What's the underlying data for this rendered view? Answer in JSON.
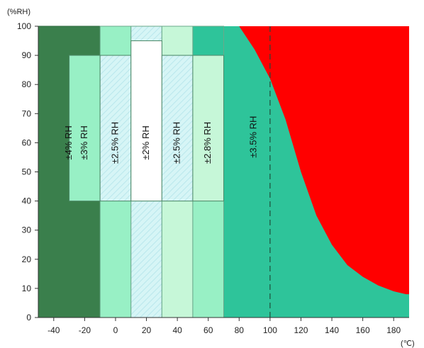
{
  "chart_data": {
    "type": "area",
    "ylabel": "(%RH)",
    "xlabel": "(℃)",
    "xlim": [
      -50,
      190
    ],
    "ylim": [
      0,
      100
    ],
    "x_ticks": [
      -40,
      -20,
      0,
      20,
      40,
      60,
      80,
      100,
      120,
      140,
      160,
      180
    ],
    "y_ticks": [
      0,
      10,
      20,
      30,
      40,
      50,
      60,
      70,
      80,
      90,
      100
    ],
    "grid": false,
    "reference_line": {
      "x": 100,
      "style": "dashed"
    },
    "background_zone": {
      "color": "#2ec49a",
      "x": [
        -50,
        190
      ],
      "y": [
        0,
        100
      ]
    },
    "zones": [
      {
        "label": "±4% RH",
        "x": [
          -50,
          -10
        ],
        "y": [
          0,
          100
        ],
        "color": "#3a7f4c",
        "pattern": "solid"
      },
      {
        "label": "±3% RH",
        "x": [
          -30,
          -10
        ],
        "y": [
          40,
          90
        ],
        "color": "#98f0c5",
        "pattern": "solid"
      },
      {
        "label": "±2.5% RH",
        "x": [
          -10,
          10
        ],
        "y": [
          40,
          90
        ],
        "color": "#d6f5f6",
        "pattern": "hatch"
      },
      {
        "label": "±2% RH",
        "x": [
          10,
          30
        ],
        "y": [
          40,
          95
        ],
        "color": "#ffffff",
        "pattern": "solid"
      },
      {
        "label": "±2.5% RH",
        "x": [
          30,
          50
        ],
        "y": [
          40,
          90
        ],
        "color": "#d6f5f6",
        "pattern": "hatch"
      },
      {
        "label": "±2.8% RH",
        "x": [
          50,
          70
        ],
        "y": [
          40,
          90
        ],
        "color": "#c6f7d8",
        "pattern": "solid"
      },
      {
        "label": "±3.5% RH",
        "x": [
          70,
          190
        ],
        "y": [
          0,
          100
        ],
        "color": "#2ec49a",
        "pattern": "solid"
      }
    ],
    "side_bands": [
      {
        "x": [
          -10,
          10
        ],
        "upper": {
          "y": [
            90,
            100
          ],
          "color": "#98f0c5",
          "pattern": "solid"
        },
        "lower": {
          "y": [
            0,
            40
          ],
          "color": "#98f0c5",
          "pattern": "solid"
        }
      },
      {
        "x": [
          10,
          30
        ],
        "upper": {
          "y": [
            95,
            100
          ],
          "color": "#d6f5f6",
          "pattern": "hatch"
        },
        "lower": {
          "y": [
            0,
            40
          ],
          "color": "#d6f5f6",
          "pattern": "hatch"
        }
      },
      {
        "x": [
          30,
          50
        ],
        "upper": {
          "y": [
            90,
            100
          ],
          "color": "#c6f7d8",
          "pattern": "solid"
        },
        "lower": {
          "y": [
            0,
            40
          ],
          "color": "#c6f7d8",
          "pattern": "solid"
        }
      },
      {
        "x": [
          50,
          70
        ],
        "upper": {
          "y": [
            90,
            100
          ],
          "color": "#2ec49a",
          "pattern": "solid"
        },
        "lower": {
          "y": [
            0,
            40
          ],
          "color": "#98f0c5",
          "pattern": "solid"
        }
      }
    ],
    "excluded_region": {
      "color": "#ff0000",
      "boundary": [
        {
          "x": 80,
          "y": 100
        },
        {
          "x": 90,
          "y": 92
        },
        {
          "x": 100,
          "y": 82
        },
        {
          "x": 110,
          "y": 68
        },
        {
          "x": 120,
          "y": 50
        },
        {
          "x": 130,
          "y": 35
        },
        {
          "x": 140,
          "y": 25
        },
        {
          "x": 150,
          "y": 18
        },
        {
          "x": 160,
          "y": 14
        },
        {
          "x": 170,
          "y": 11
        },
        {
          "x": 180,
          "y": 9
        },
        {
          "x": 188,
          "y": 8
        }
      ]
    }
  }
}
